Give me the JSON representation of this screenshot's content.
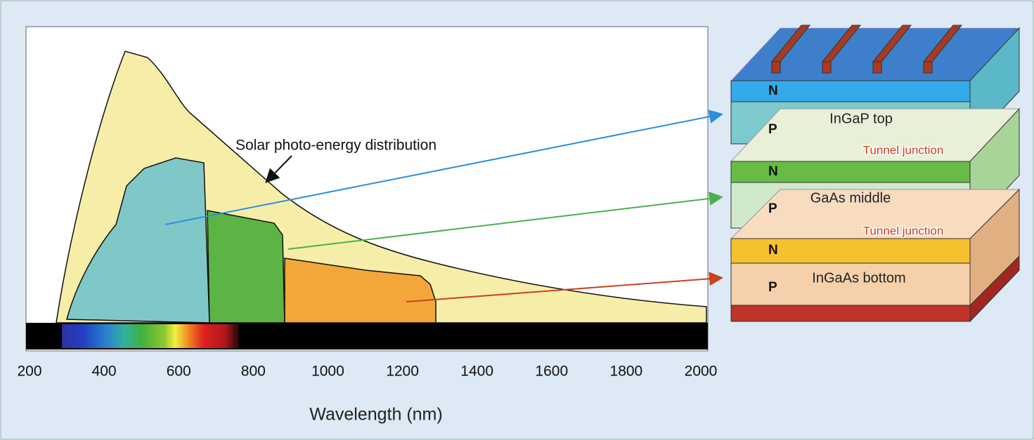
{
  "annotation": "Solar photo-energy distribution",
  "axis": {
    "title": "Wavelength (nm)",
    "ticks": [
      200,
      400,
      600,
      800,
      1000,
      1200,
      1400,
      1600,
      1800,
      2000
    ]
  },
  "cell": {
    "layers": [
      {
        "n": "N",
        "p": "P",
        "name": "InGaP top"
      },
      {
        "n": "N",
        "p": "P",
        "name": "GaAs middle"
      },
      {
        "n": "N",
        "p": "P",
        "name": "InGaAs bottom"
      }
    ],
    "tunnel_junctions": [
      "Tunnel junction",
      "Tunnel junction"
    ]
  }
}
